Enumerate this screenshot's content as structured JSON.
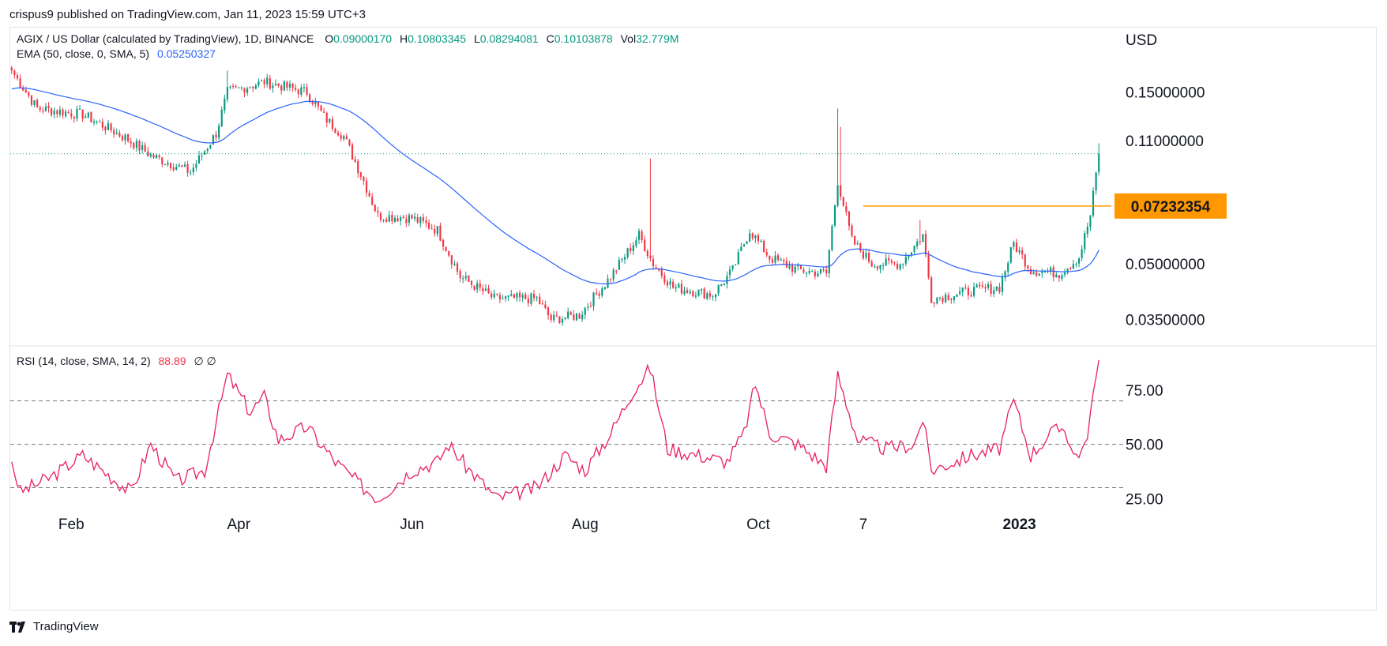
{
  "publish_line": "crispus9 published on TradingView.com, Jan 11, 2023 15:59 UTC+3",
  "legend": {
    "symbol": "AGIX / US Dollar (calculated by TradingView), 1D, BINANCE",
    "o_label": "O",
    "o_value": "0.09000170",
    "h_label": "H",
    "h_value": "0.10803345",
    "l_label": "L",
    "l_value": "0.08294081",
    "c_label": "C",
    "c_value": "0.10103878",
    "vol_label": "Vol",
    "vol_value": "32.779M",
    "ema_label": "EMA (50, close, 0, SMA, 5)",
    "ema_value": "0.05250327",
    "rsi_label": "RSI (14, close, SMA, 14, 2)",
    "rsi_value": "88.89",
    "rsi_extra": "∅ ∅"
  },
  "footer_brand": "TradingView",
  "colors": {
    "up": "#089981",
    "down": "#f23645",
    "ema": "#2962ff",
    "rsi": "#e91e63",
    "level": "#ff9800"
  },
  "chart_data": [
    {
      "type": "candlestick",
      "title": "AGIX / US Dollar (calculated by TradingView), 1D, BINANCE",
      "currency_label": "USD",
      "y_ticks": [
        "0.15000000",
        "0.11000000",
        "0.05000000",
        "0.03500000"
      ],
      "x_ticks": [
        "Feb",
        "Apr",
        "Jun",
        "Aug",
        "Oct",
        "7",
        "2023"
      ],
      "last_close": 0.10103878,
      "horizontal_level": {
        "value": 0.07232354,
        "label": "0.07232354",
        "from": "2022-11-07"
      },
      "anchors": [
        {
          "d": "2022-01-11",
          "c": 0.172
        },
        {
          "d": "2022-01-20",
          "c": 0.135
        },
        {
          "d": "2022-02-05",
          "c": 0.13
        },
        {
          "d": "2022-02-20",
          "c": 0.112
        },
        {
          "d": "2022-03-01",
          "c": 0.1
        },
        {
          "d": "2022-03-15",
          "c": 0.09
        },
        {
          "d": "2022-03-24",
          "c": 0.115
        },
        {
          "d": "2022-03-28",
          "c": 0.15
        },
        {
          "d": "2022-04-10",
          "c": 0.16
        },
        {
          "d": "2022-04-25",
          "c": 0.15
        },
        {
          "d": "2022-05-01",
          "c": 0.128
        },
        {
          "d": "2022-05-08",
          "c": 0.113
        },
        {
          "d": "2022-05-15",
          "c": 0.085
        },
        {
          "d": "2022-05-20",
          "c": 0.068
        },
        {
          "d": "2022-06-01",
          "c": 0.067
        },
        {
          "d": "2022-06-10",
          "c": 0.062
        },
        {
          "d": "2022-06-18",
          "c": 0.046
        },
        {
          "d": "2022-06-30",
          "c": 0.04
        },
        {
          "d": "2022-07-15",
          "c": 0.04
        },
        {
          "d": "2022-07-20",
          "c": 0.035
        },
        {
          "d": "2022-07-30",
          "c": 0.036
        },
        {
          "d": "2022-08-10",
          "c": 0.046
        },
        {
          "d": "2022-08-20",
          "c": 0.06
        },
        {
          "d": "2022-08-25",
          "c": 0.05
        },
        {
          "d": "2022-09-01",
          "c": 0.043
        },
        {
          "d": "2022-09-15",
          "c": 0.041
        },
        {
          "d": "2022-09-22",
          "c": 0.048
        },
        {
          "d": "2022-09-28",
          "c": 0.062
        },
        {
          "d": "2022-10-05",
          "c": 0.052
        },
        {
          "d": "2022-10-15",
          "c": 0.048
        },
        {
          "d": "2022-10-25",
          "c": 0.047
        },
        {
          "d": "2022-10-29",
          "c": 0.085
        },
        {
          "d": "2022-11-03",
          "c": 0.058
        },
        {
          "d": "2022-11-10",
          "c": 0.05
        },
        {
          "d": "2022-11-20",
          "c": 0.05
        },
        {
          "d": "2022-11-28",
          "c": 0.06
        },
        {
          "d": "2022-12-01",
          "c": 0.04
        },
        {
          "d": "2022-12-15",
          "c": 0.042
        },
        {
          "d": "2022-12-25",
          "c": 0.043
        },
        {
          "d": "2022-12-30",
          "c": 0.057
        },
        {
          "d": "2023-01-05",
          "c": 0.048
        },
        {
          "d": "2023-01-15",
          "c": 0.047
        },
        {
          "d": "2023-01-22",
          "c": 0.052
        },
        {
          "d": "2023-01-26",
          "c": 0.068
        },
        {
          "d": "2023-01-29",
          "c": 0.101
        }
      ],
      "spikes": [
        {
          "d": "2022-08-24",
          "high": 0.098
        },
        {
          "d": "2022-10-29",
          "high": 0.135
        },
        {
          "d": "2022-10-30",
          "high": 0.12
        },
        {
          "d": "2022-11-27",
          "high": 0.066
        },
        {
          "d": "2023-01-29",
          "high": 0.108
        },
        {
          "d": "2022-03-28",
          "high": 0.172
        }
      ]
    },
    {
      "type": "line",
      "title": "EMA (50, close, 0, SMA, 5)",
      "last_value": 0.05250327
    },
    {
      "type": "line",
      "title": "RSI (14, close, SMA, 14, 2)",
      "y_ticks": [
        "75.00",
        "50.00",
        "25.00"
      ],
      "bands": [
        70,
        50,
        30
      ],
      "last_value": 88.89,
      "anchors": [
        {
          "d": "2022-01-11",
          "v": 42
        },
        {
          "d": "2022-01-14",
          "v": 28
        },
        {
          "d": "2022-01-25",
          "v": 35
        },
        {
          "d": "2022-02-05",
          "v": 45
        },
        {
          "d": "2022-02-15",
          "v": 35
        },
        {
          "d": "2022-02-22",
          "v": 28
        },
        {
          "d": "2022-03-01",
          "v": 50
        },
        {
          "d": "2022-03-10",
          "v": 33
        },
        {
          "d": "2022-03-20",
          "v": 38
        },
        {
          "d": "2022-03-28",
          "v": 82
        },
        {
          "d": "2022-04-05",
          "v": 65
        },
        {
          "d": "2022-04-10",
          "v": 72
        },
        {
          "d": "2022-04-15",
          "v": 52
        },
        {
          "d": "2022-04-25",
          "v": 58
        },
        {
          "d": "2022-05-05",
          "v": 42
        },
        {
          "d": "2022-05-15",
          "v": 30
        },
        {
          "d": "2022-05-20",
          "v": 25
        },
        {
          "d": "2022-06-01",
          "v": 38
        },
        {
          "d": "2022-06-10",
          "v": 42
        },
        {
          "d": "2022-06-14",
          "v": 50
        },
        {
          "d": "2022-06-20",
          "v": 40
        },
        {
          "d": "2022-07-01",
          "v": 25
        },
        {
          "d": "2022-07-15",
          "v": 30
        },
        {
          "d": "2022-07-25",
          "v": 45
        },
        {
          "d": "2022-08-01",
          "v": 38
        },
        {
          "d": "2022-08-10",
          "v": 55
        },
        {
          "d": "2022-08-18",
          "v": 75
        },
        {
          "d": "2022-08-24",
          "v": 85
        },
        {
          "d": "2022-08-30",
          "v": 48
        },
        {
          "d": "2022-09-10",
          "v": 45
        },
        {
          "d": "2022-09-20",
          "v": 42
        },
        {
          "d": "2022-09-26",
          "v": 55
        },
        {
          "d": "2022-09-30",
          "v": 78
        },
        {
          "d": "2022-10-05",
          "v": 55
        },
        {
          "d": "2022-10-15",
          "v": 50
        },
        {
          "d": "2022-10-25",
          "v": 40
        },
        {
          "d": "2022-10-29",
          "v": 82
        },
        {
          "d": "2022-11-05",
          "v": 52
        },
        {
          "d": "2022-11-15",
          "v": 48
        },
        {
          "d": "2022-11-25",
          "v": 50
        },
        {
          "d": "2022-11-28",
          "v": 62
        },
        {
          "d": "2022-12-01",
          "v": 38
        },
        {
          "d": "2022-12-15",
          "v": 45
        },
        {
          "d": "2022-12-25",
          "v": 48
        },
        {
          "d": "2022-12-30",
          "v": 70
        },
        {
          "d": "2023-01-05",
          "v": 45
        },
        {
          "d": "2023-01-12",
          "v": 55
        },
        {
          "d": "2023-01-17",
          "v": 58
        },
        {
          "d": "2023-01-20",
          "v": 45
        },
        {
          "d": "2023-01-24",
          "v": 48
        },
        {
          "d": "2023-01-27",
          "v": 72
        },
        {
          "d": "2023-01-29",
          "v": 89
        }
      ]
    }
  ]
}
